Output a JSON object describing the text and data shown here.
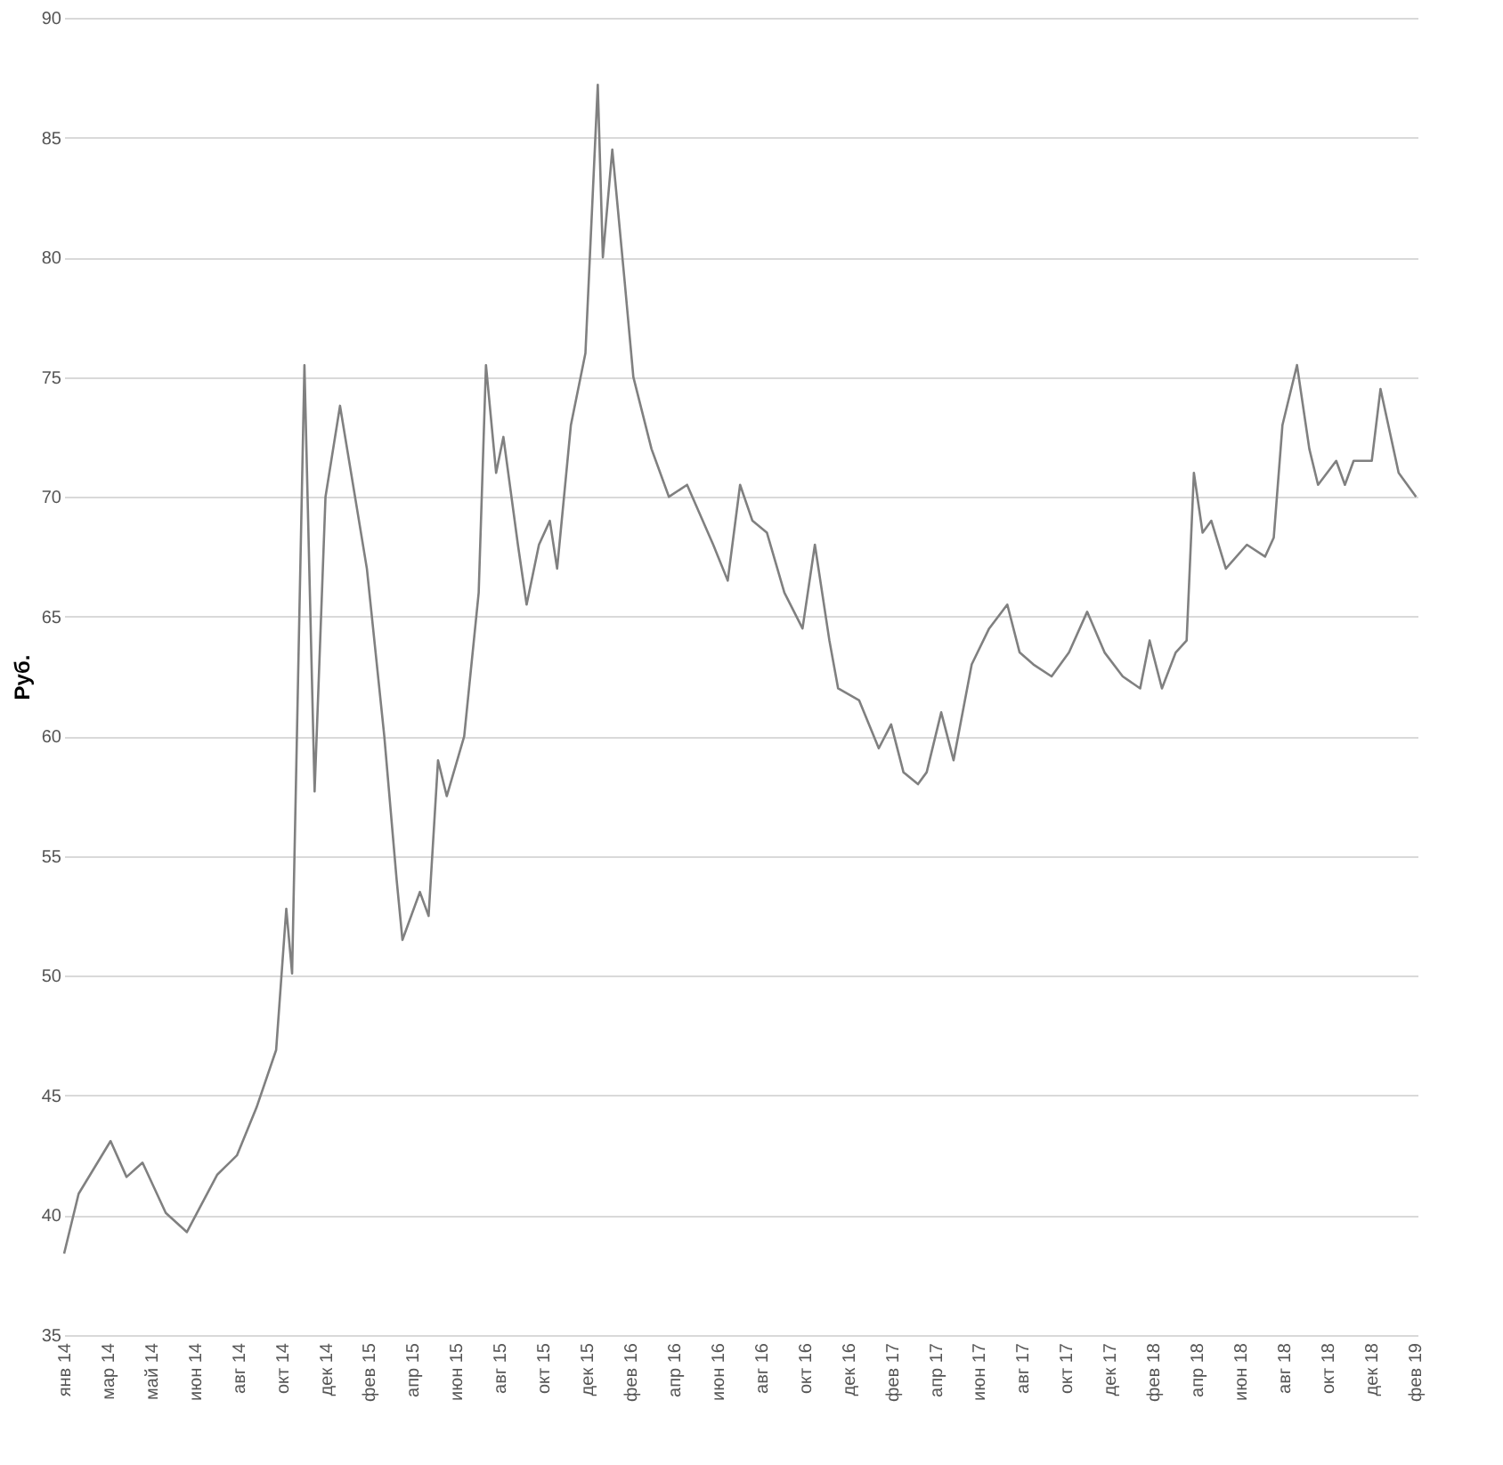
{
  "chart_data": {
    "type": "line",
    "ylabel": "Руб.",
    "x": [
      "2014-01-01",
      "2014-01-21",
      "2014-03-06",
      "2014-03-28",
      "2014-04-19",
      "2014-05-21",
      "2014-06-19",
      "2014-07-31",
      "2014-08-27",
      "2014-09-23",
      "2014-10-20",
      "2014-11-03",
      "2014-11-11",
      "2014-11-28",
      "2014-12-12",
      "2014-12-27",
      "2015-01-16",
      "2015-02-22",
      "2015-03-18",
      "2015-04-04",
      "2015-04-12",
      "2015-05-06",
      "2015-05-18",
      "2015-05-31",
      "2015-06-12",
      "2015-07-06",
      "2015-07-26",
      "2015-08-05",
      "2015-08-19",
      "2015-08-29",
      "2015-09-18",
      "2015-09-30",
      "2015-10-17",
      "2015-11-01",
      "2015-11-11",
      "2015-11-30",
      "2015-12-20",
      "2016-01-06",
      "2016-01-13",
      "2016-01-26",
      "2016-02-12",
      "2016-02-24",
      "2016-03-20",
      "2016-04-13",
      "2016-05-08",
      "2016-06-13",
      "2016-07-03",
      "2016-07-20",
      "2016-08-06",
      "2016-08-26",
      "2016-09-19",
      "2016-10-14",
      "2016-10-31",
      "2016-11-20",
      "2016-12-02",
      "2016-12-31",
      "2017-01-27",
      "2017-02-13",
      "2017-03-02",
      "2017-03-22",
      "2017-04-03",
      "2017-04-23",
      "2017-05-10",
      "2017-06-04",
      "2017-06-28",
      "2017-07-23",
      "2017-08-09",
      "2017-08-28",
      "2017-09-22",
      "2017-10-16",
      "2017-11-10",
      "2017-12-04",
      "2017-12-29",
      "2018-01-22",
      "2018-02-04",
      "2018-02-21",
      "2018-03-12",
      "2018-03-27",
      "2018-04-06",
      "2018-04-18",
      "2018-04-30",
      "2018-05-20",
      "2018-06-18",
      "2018-07-13",
      "2018-07-25",
      "2018-08-06",
      "2018-08-26",
      "2018-09-12",
      "2018-09-24",
      "2018-10-19",
      "2018-10-31",
      "2018-11-12",
      "2018-12-07",
      "2018-12-19",
      "2019-01-13",
      "2019-02-06"
    ],
    "series": [
      {
        "color": "#808080",
        "values": [
          38.4,
          40.9,
          43.1,
          41.6,
          42.2,
          40.1,
          39.3,
          41.7,
          42.5,
          44.5,
          46.9,
          52.8,
          50.1,
          75.5,
          57.7,
          70,
          73.8,
          67,
          60,
          54,
          51.5,
          53.5,
          52.5,
          59,
          57.5,
          60,
          66,
          75.5,
          71,
          72.5,
          68,
          65.5,
          68,
          69,
          67,
          73,
          76,
          87.2,
          80,
          84.5,
          79,
          75,
          72,
          70,
          70.5,
          68,
          66.5,
          70.5,
          69,
          68.5,
          66,
          64.5,
          68,
          64,
          62,
          61.5,
          59.5,
          60.5,
          58.5,
          58,
          58.5,
          61,
          59,
          63,
          64.5,
          65.5,
          63.5,
          63,
          62.5,
          63.5,
          65.2,
          63.5,
          62.5,
          62,
          64,
          62,
          63.5,
          64,
          71,
          68.5,
          69,
          67,
          68,
          67.5,
          68.3,
          73,
          75.5,
          72,
          70.5,
          71.5,
          70.5,
          71.5,
          71.5,
          74.5,
          71,
          70
        ]
      }
    ],
    "xlim": [
      "2014-01-01",
      "2019-02-08"
    ],
    "xticks": [
      {
        "value": "2014-01-01",
        "label": "янв 14"
      },
      {
        "value": "2014-03-02",
        "label": "мар 14"
      },
      {
        "value": "2014-05-01",
        "label": "май 14"
      },
      {
        "value": "2014-06-30",
        "label": "июн 14"
      },
      {
        "value": "2014-08-29",
        "label": "авг 14"
      },
      {
        "value": "2014-10-28",
        "label": "окт 14"
      },
      {
        "value": "2014-12-27",
        "label": "дек 14"
      },
      {
        "value": "2015-02-25",
        "label": "фев 15"
      },
      {
        "value": "2015-04-26",
        "label": "апр 15"
      },
      {
        "value": "2015-06-25",
        "label": "июн 15"
      },
      {
        "value": "2015-08-24",
        "label": "авг 15"
      },
      {
        "value": "2015-10-23",
        "label": "окт 15"
      },
      {
        "value": "2015-12-22",
        "label": "дек 15"
      },
      {
        "value": "2016-02-20",
        "label": "фев 16"
      },
      {
        "value": "2016-04-20",
        "label": "апр 16"
      },
      {
        "value": "2016-06-19",
        "label": "июн 16"
      },
      {
        "value": "2016-08-18",
        "label": "авг 16"
      },
      {
        "value": "2016-10-17",
        "label": "окт 16"
      },
      {
        "value": "2016-12-16",
        "label": "дек 16"
      },
      {
        "value": "2017-02-14",
        "label": "фев 17"
      },
      {
        "value": "2017-04-15",
        "label": "апр 17"
      },
      {
        "value": "2017-06-14",
        "label": "июн 17"
      },
      {
        "value": "2017-08-13",
        "label": "авг 17"
      },
      {
        "value": "2017-10-12",
        "label": "окт 17"
      },
      {
        "value": "2017-12-11",
        "label": "дек 17"
      },
      {
        "value": "2018-02-09",
        "label": "фев 18"
      },
      {
        "value": "2018-04-10",
        "label": "апр 18"
      },
      {
        "value": "2018-06-09",
        "label": "июн 18"
      },
      {
        "value": "2018-08-08",
        "label": "авг 18"
      },
      {
        "value": "2018-10-07",
        "label": "окт 18"
      },
      {
        "value": "2018-12-06",
        "label": "дек 18"
      },
      {
        "value": "2019-02-04",
        "label": "фев 19"
      }
    ],
    "ylim": [
      35,
      90
    ],
    "yticks": [
      35,
      40,
      45,
      50,
      55,
      60,
      65,
      70,
      75,
      80,
      85,
      90
    ],
    "grid": "y",
    "legend": false,
    "marker": "none",
    "line_style": "solid"
  }
}
